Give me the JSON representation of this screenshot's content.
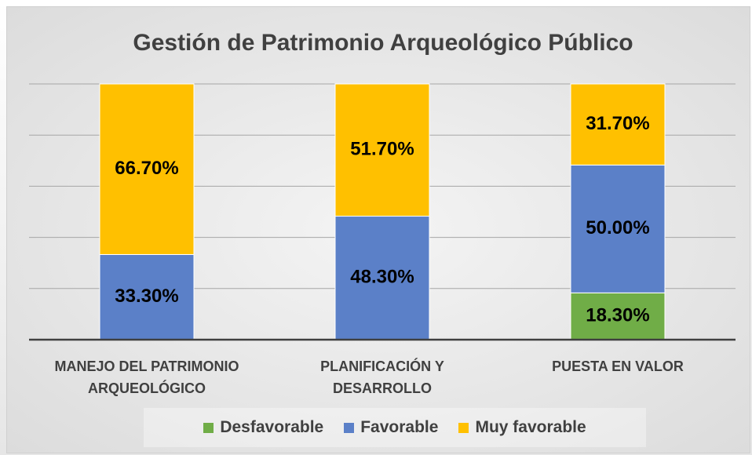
{
  "chart_data": {
    "type": "stacked_bar",
    "title": "Gestión de Patrimonio Arqueológico Público",
    "categories": [
      "MANEJO DEL PATRIMONIO\nARQUEOLÓGICO",
      "PLANIFICACIÓN Y\nDESARROLLO",
      "PUESTA EN VALOR"
    ],
    "series": [
      {
        "name": "Desfavorable",
        "color": "#70ad47",
        "values": [
          0,
          0,
          18.3
        ],
        "value_labels": [
          null,
          null,
          "18.30%"
        ]
      },
      {
        "name": "Favorable",
        "color": "#5b80c8",
        "values": [
          33.3,
          48.3,
          50
        ],
        "value_labels": [
          "33.30%",
          "48.30%",
          "50.00%"
        ]
      },
      {
        "name": "Muy favorable",
        "color": "#ffc000",
        "values": [
          66.7,
          51.7,
          31.7
        ],
        "value_labels": [
          "66.70%",
          "51.70%",
          "31.70%"
        ]
      }
    ],
    "ylim": [
      0,
      100
    ],
    "yticks": [
      0,
      20,
      40,
      60,
      80,
      100
    ],
    "grid": true,
    "legend": "bottom"
  }
}
